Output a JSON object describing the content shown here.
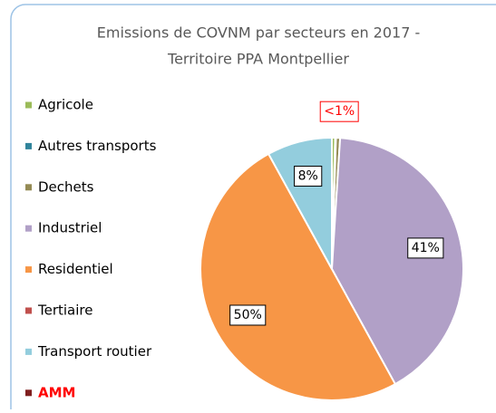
{
  "chart_data": {
    "type": "pie",
    "title_lines": [
      "Emissions de COVNM par secteurs en 2017 -",
      "Territoire PPA Montpellier"
    ],
    "categories": [
      "Agricole",
      "Autres transports",
      "Dechets",
      "Industriel",
      "Residentiel",
      "Tertiaire",
      "Transport routier",
      "AMM"
    ],
    "values": [
      0.4,
      0.1,
      0.5,
      41,
      50,
      0,
      8,
      null
    ],
    "value_labels": [
      null,
      null,
      "<1%",
      "41%",
      "50%",
      null,
      "8%",
      null
    ],
    "colors": [
      "#9bbb59",
      "#31849b",
      "#948a54",
      "#b1a0c7",
      "#f79646",
      "#c0504d",
      "#93cddd",
      "#7f1f1f"
    ],
    "legend_text_colors": [
      "#000000",
      "#000000",
      "#000000",
      "#000000",
      "#000000",
      "#000000",
      "#000000",
      "#ff0000"
    ],
    "value_label_colors": [
      "#000000",
      "#000000",
      "#ff0000",
      "#000000",
      "#000000",
      "#000000",
      "#000000",
      "#000000"
    ],
    "legend": "left"
  }
}
